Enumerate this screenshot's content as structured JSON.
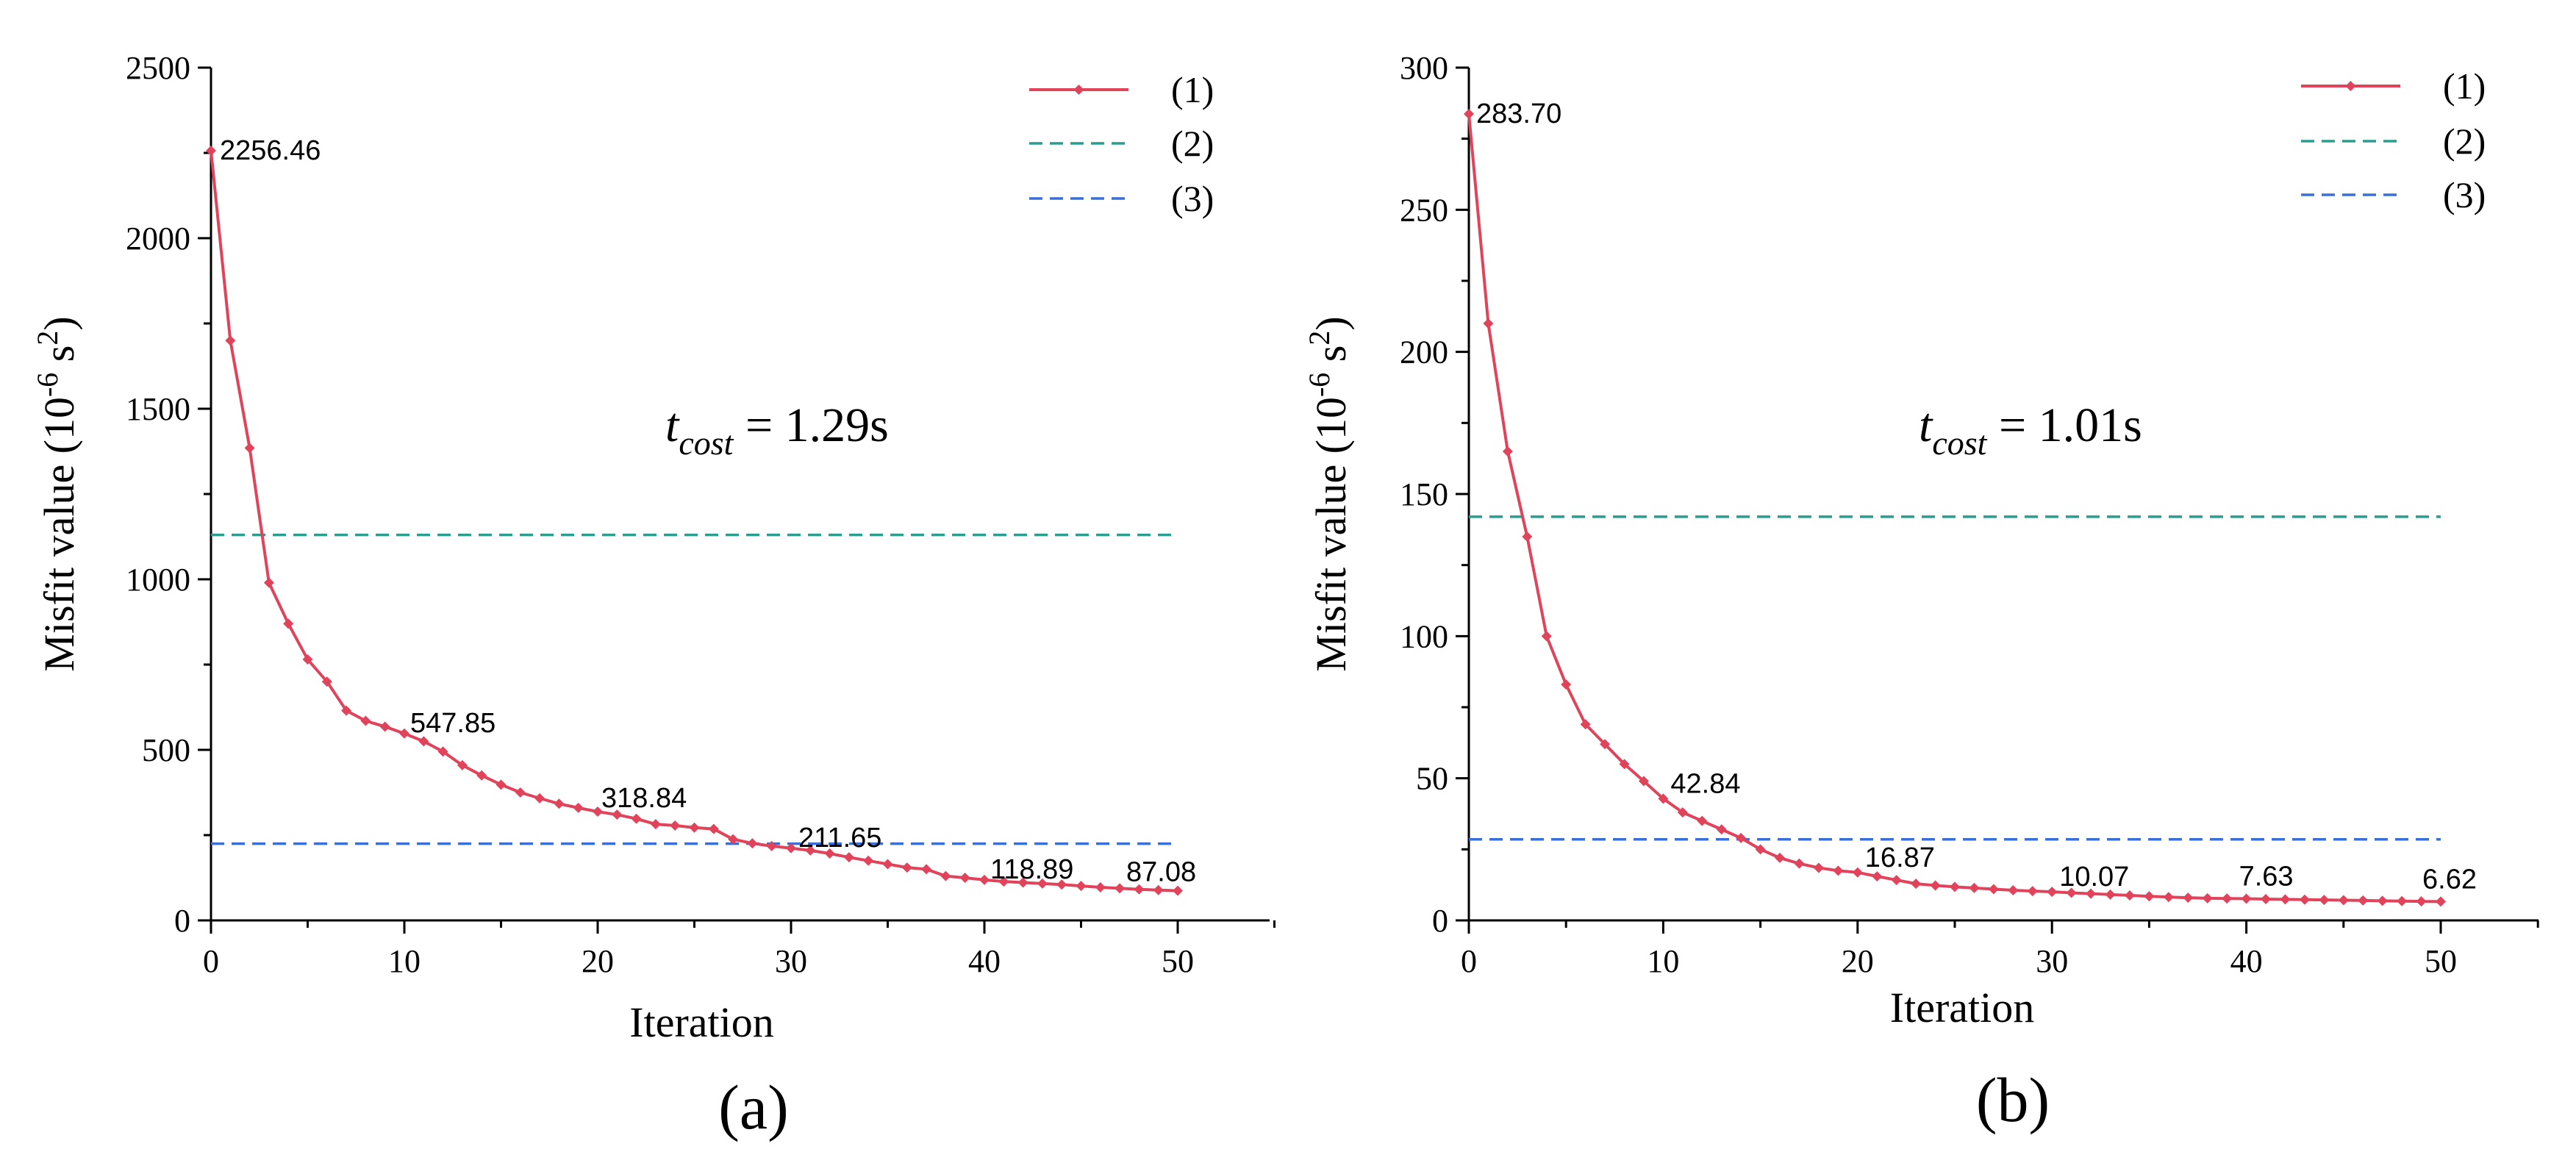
{
  "colors": {
    "series1": "#e0435a",
    "series2": "#2a9d8f",
    "series3": "#3a6fd8"
  },
  "chart_data": [
    {
      "type": "line",
      "panel_label": "(a)",
      "xlabel": "Iteration",
      "ylabel_main": "Misfit value (10",
      "ylabel_exp1": "-6",
      "ylabel_mid": " s",
      "ylabel_exp2": "2",
      "ylabel_end": ")",
      "xlim": [
        0,
        55
      ],
      "ylim": [
        0,
        2500
      ],
      "xticks": [
        "0",
        "10",
        "20",
        "30",
        "40",
        "50"
      ],
      "yticks": [
        "0",
        "500",
        "1000",
        "1500",
        "2000",
        "2500"
      ],
      "annotation_t": "t",
      "annotation_sub": "cost",
      "annotation_value": " = 1.29s",
      "series": [
        {
          "name": "(1)",
          "x": [
            0,
            1,
            2,
            3,
            4,
            5,
            6,
            7,
            8,
            9,
            10,
            11,
            12,
            13,
            14,
            15,
            16,
            17,
            18,
            19,
            20,
            21,
            22,
            23,
            24,
            25,
            26,
            27,
            28,
            29,
            30,
            31,
            32,
            33,
            34,
            35,
            36,
            37,
            38,
            39,
            40,
            41,
            42,
            43,
            44,
            45,
            46,
            47,
            48,
            49,
            50
          ],
          "values": [
            2256.46,
            1700,
            1385,
            990,
            870,
            765,
            700,
            615,
            585,
            568,
            547.85,
            525,
            495,
            455,
            425,
            398,
            375,
            358,
            342,
            330,
            318.84,
            310,
            298,
            282,
            278,
            272,
            268,
            238,
            226,
            218,
            211.65,
            205,
            196,
            185,
            175,
            165,
            155,
            150,
            130,
            125,
            118.89,
            114,
            111,
            108,
            105,
            101,
            97,
            94,
            91,
            89,
            87.08
          ]
        },
        {
          "name": "(2)",
          "constant": 1130
        },
        {
          "name": "(3)",
          "constant": 225
        }
      ],
      "data_labels": [
        {
          "x": 0,
          "y": 2256.46,
          "text": "2256.46"
        },
        {
          "x": 10,
          "y": 547.85,
          "text": "547.85"
        },
        {
          "x": 20,
          "y": 318.84,
          "text": "318.84"
        },
        {
          "x": 30,
          "y": 211.65,
          "text": "211.65"
        },
        {
          "x": 40,
          "y": 118.89,
          "text": "118.89"
        },
        {
          "x": 50,
          "y": 87.08,
          "text": "87.08"
        }
      ]
    },
    {
      "type": "line",
      "panel_label": "(b)",
      "xlabel": "Iteration",
      "ylabel_main": "Misfit value (10",
      "ylabel_exp1": "-6",
      "ylabel_mid": " s",
      "ylabel_exp2": "2",
      "ylabel_end": ")",
      "xlim": [
        0,
        55
      ],
      "ylim": [
        0,
        300
      ],
      "xticks": [
        "0",
        "10",
        "20",
        "30",
        "40",
        "50"
      ],
      "yticks": [
        "0",
        "50",
        "100",
        "150",
        "200",
        "250",
        "300"
      ],
      "annotation_t": "t",
      "annotation_sub": "cost",
      "annotation_value": " = 1.01s",
      "series": [
        {
          "name": "(1)",
          "x": [
            0,
            1,
            2,
            3,
            4,
            5,
            6,
            7,
            8,
            9,
            10,
            11,
            12,
            13,
            14,
            15,
            16,
            17,
            18,
            19,
            20,
            21,
            22,
            23,
            24,
            25,
            26,
            27,
            28,
            29,
            30,
            31,
            32,
            33,
            34,
            35,
            36,
            37,
            38,
            39,
            40,
            41,
            42,
            43,
            44,
            45,
            46,
            47,
            48,
            49,
            50
          ],
          "values": [
            283.7,
            210,
            165,
            135,
            100,
            83,
            69,
            62,
            55,
            49,
            42.84,
            38,
            35,
            32,
            29,
            25,
            22,
            20,
            18.5,
            17.5,
            16.87,
            15.5,
            14.2,
            12.9,
            12.3,
            11.8,
            11.4,
            11.0,
            10.6,
            10.3,
            10.07,
            9.7,
            9.4,
            9.1,
            8.8,
            8.5,
            8.2,
            8.0,
            7.8,
            7.7,
            7.63,
            7.5,
            7.4,
            7.3,
            7.2,
            7.1,
            7.0,
            6.9,
            6.8,
            6.7,
            6.62
          ]
        },
        {
          "name": "(2)",
          "constant": 142
        },
        {
          "name": "(3)",
          "constant": 28.5
        }
      ],
      "data_labels": [
        {
          "x": 0,
          "y": 283.7,
          "text": "283.70"
        },
        {
          "x": 10,
          "y": 42.84,
          "text": "42.84"
        },
        {
          "x": 20,
          "y": 16.87,
          "text": "16.87"
        },
        {
          "x": 30,
          "y": 10.07,
          "text": "10.07"
        },
        {
          "x": 40,
          "y": 7.63,
          "text": "7.63"
        },
        {
          "x": 50,
          "y": 6.62,
          "text": "6.62"
        }
      ]
    }
  ]
}
